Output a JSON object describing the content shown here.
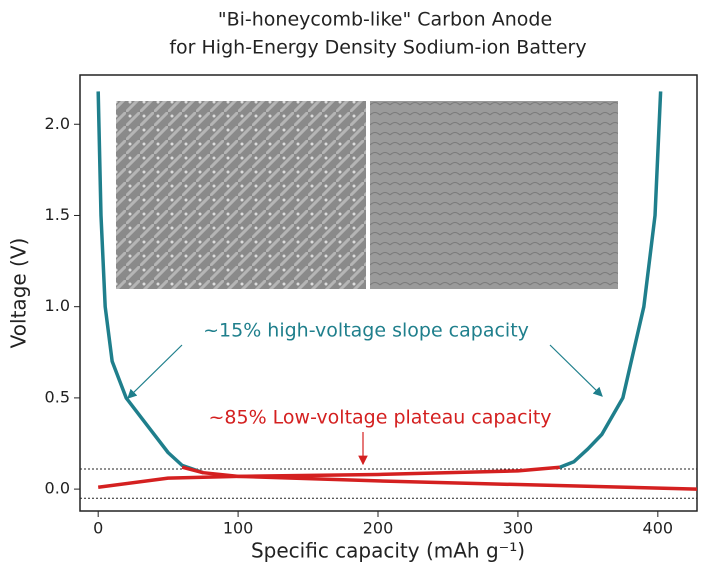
{
  "chart_data": {
    "type": "line",
    "title": [
      "\"Bi-honeycomb-like\" Carbon Anode",
      "for High-Energy Density Sodium-ion Battery"
    ],
    "xlabel": "Specific capacity (mAh g⁻¹)",
    "ylabel": "Voltage (V)",
    "xlim": [
      -13,
      428
    ],
    "ylim": [
      -0.12,
      2.27
    ],
    "xticks": [
      0,
      100,
      200,
      300,
      400
    ],
    "yticks": [
      {
        "value": 0,
        "label": "0.0"
      },
      0.5,
      {
        "value": 1,
        "label": "1.0"
      },
      1.5,
      {
        "value": 2,
        "label": "2.0"
      }
    ],
    "hlines": [
      0.11,
      -0.05
    ],
    "series": [
      {
        "color": "#1f7f8c",
        "x": [
          0,
          2,
          5,
          10,
          20,
          35,
          50,
          60,
          75
        ],
        "values": [
          2.18,
          1.5,
          1.0,
          0.7,
          0.5,
          0.35,
          0.2,
          0.13,
          0.09
        ]
      },
      {
        "color": "#d42020",
        "x": [
          60,
          75,
          100,
          200,
          300,
          428
        ],
        "values": [
          0.12,
          0.09,
          0.07,
          0.045,
          0.025,
          0.0
        ]
      },
      {
        "color": "#d42020",
        "x": [
          0,
          50,
          100,
          200,
          300,
          330
        ],
        "values": [
          0.01,
          0.06,
          0.07,
          0.08,
          0.1,
          0.12
        ]
      },
      {
        "color": "#1f7f8c",
        "x": [
          330,
          340,
          350,
          360,
          375,
          390,
          398,
          402
        ],
        "values": [
          0.12,
          0.15,
          0.22,
          0.3,
          0.5,
          1.0,
          1.5,
          2.18
        ]
      }
    ],
    "annotations": [
      {
        "text": "~15% high-voltage slope capacity",
        "color": "#1f7f8c"
      },
      {
        "text": "~85% Low-voltage plateau capacity",
        "color": "#d42020"
      }
    ]
  }
}
